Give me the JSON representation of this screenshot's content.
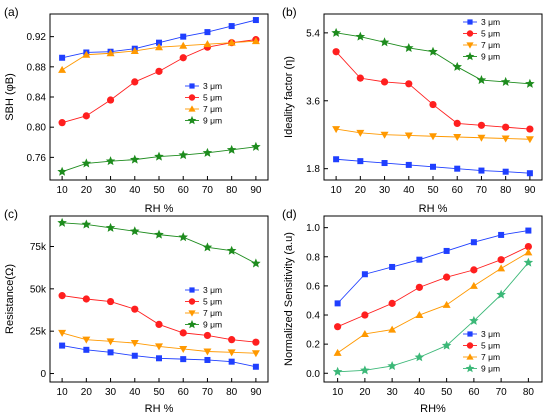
{
  "colors": {
    "blue": "#1f3fff",
    "red": "#ff1f1f",
    "orange": "#ff9900",
    "green": "#1e8c1e",
    "teal": "#3cb878"
  },
  "chart_data": [
    {
      "panel_label": "(a)",
      "type": "line",
      "xlabel": "RH %",
      "ylabel": "SBH (φB)",
      "x": [
        10,
        20,
        30,
        40,
        50,
        60,
        70,
        80,
        90
      ],
      "xlim": [
        5,
        95
      ],
      "ylim": [
        0.73,
        0.95
      ],
      "xticks": [
        10,
        20,
        30,
        40,
        50,
        60,
        70,
        80,
        90
      ],
      "yticks": [
        0.76,
        0.8,
        0.84,
        0.88,
        0.92
      ],
      "ytick_labels": [
        "0.76",
        "0.80",
        "0.84",
        "0.88",
        "0.92"
      ],
      "legend_position": "center-right",
      "series": [
        {
          "name": "3 μm",
          "marker": "square",
          "color": "#1f3fff",
          "values": [
            0.892,
            0.899,
            0.9,
            0.904,
            0.912,
            0.92,
            0.926,
            0.934,
            0.942
          ]
        },
        {
          "name": "5 μm",
          "marker": "circle",
          "color": "#ff1f1f",
          "values": [
            0.806,
            0.815,
            0.836,
            0.86,
            0.874,
            0.892,
            0.906,
            0.912,
            0.916
          ]
        },
        {
          "name": "7 μm",
          "marker": "triangle-up",
          "color": "#ff9900",
          "values": [
            0.876,
            0.896,
            0.898,
            0.901,
            0.906,
            0.908,
            0.91,
            0.912,
            0.914
          ]
        },
        {
          "name": "9 μm",
          "marker": "star",
          "color": "#1e8c1e",
          "values": [
            0.741,
            0.752,
            0.755,
            0.757,
            0.761,
            0.763,
            0.766,
            0.77,
            0.774
          ]
        }
      ]
    },
    {
      "panel_label": "(b)",
      "type": "line",
      "xlabel": "RH %",
      "ylabel": "Ideality factor (η)",
      "x": [
        10,
        20,
        30,
        40,
        50,
        60,
        70,
        80,
        90
      ],
      "xlim": [
        5,
        95
      ],
      "ylim": [
        1.5,
        5.9
      ],
      "xticks": [
        10,
        20,
        30,
        40,
        50,
        60,
        70,
        80,
        90
      ],
      "yticks": [
        1.8,
        3.6,
        5.4
      ],
      "ytick_labels": [
        "1.8",
        "3.6",
        "5.4"
      ],
      "legend_position": "top-right",
      "series": [
        {
          "name": "3 μm",
          "marker": "square",
          "color": "#1f3fff",
          "values": [
            2.05,
            2.0,
            1.95,
            1.9,
            1.85,
            1.8,
            1.75,
            1.72,
            1.68
          ]
        },
        {
          "name": "5 μm",
          "marker": "circle",
          "color": "#ff1f1f",
          "values": [
            4.9,
            4.2,
            4.1,
            4.05,
            3.5,
            3.0,
            2.95,
            2.9,
            2.85
          ]
        },
        {
          "name": "7 μm",
          "marker": "triangle-down",
          "color": "#ff9900",
          "values": [
            2.85,
            2.75,
            2.7,
            2.68,
            2.66,
            2.64,
            2.62,
            2.6,
            2.58
          ]
        },
        {
          "name": "9 μm",
          "marker": "star",
          "color": "#1e8c1e",
          "values": [
            5.4,
            5.3,
            5.15,
            5.0,
            4.9,
            4.5,
            4.15,
            4.1,
            4.05
          ]
        }
      ]
    },
    {
      "panel_label": "(c)",
      "type": "line",
      "xlabel": "RH %",
      "ylabel": "Resistance(Ω)",
      "x": [
        10,
        20,
        30,
        40,
        50,
        60,
        70,
        80,
        90
      ],
      "xlim": [
        5,
        95
      ],
      "ylim": [
        -5000,
        93000
      ],
      "xticks": [
        10,
        20,
        30,
        40,
        50,
        60,
        70,
        80,
        90
      ],
      "yticks": [
        0,
        25000,
        50000,
        75000
      ],
      "ytick_labels": [
        "0",
        "25k",
        "50k",
        "75k"
      ],
      "legend_position": "center-right",
      "series": [
        {
          "name": "3 μm",
          "marker": "square",
          "color": "#1f3fff",
          "values": [
            16500,
            14000,
            12500,
            10500,
            9000,
            8500,
            8000,
            7000,
            4000
          ]
        },
        {
          "name": "5 μm",
          "marker": "circle",
          "color": "#ff1f1f",
          "values": [
            46000,
            44000,
            42500,
            38000,
            29000,
            24000,
            22500,
            20000,
            18500
          ]
        },
        {
          "name": "7 μm",
          "marker": "triangle-down",
          "color": "#ff9900",
          "values": [
            24000,
            20000,
            19000,
            18000,
            16000,
            14500,
            13000,
            12500,
            12000
          ]
        },
        {
          "name": "9 μm",
          "marker": "star",
          "color": "#1e8c1e",
          "values": [
            89000,
            88000,
            86000,
            84000,
            82000,
            80500,
            74500,
            72500,
            65000
          ]
        }
      ]
    },
    {
      "panel_label": "(d)",
      "type": "line",
      "xlabel": "RH%",
      "ylabel": "Normalized Sensitivity (a.u)",
      "x": [
        10,
        20,
        30,
        40,
        50,
        60,
        70,
        80
      ],
      "xlim": [
        5,
        85
      ],
      "ylim": [
        -0.06,
        1.08
      ],
      "xticks": [
        10,
        20,
        30,
        40,
        50,
        60,
        70,
        80
      ],
      "yticks": [
        0.0,
        0.2,
        0.4,
        0.6,
        0.8,
        1.0
      ],
      "ytick_labels": [
        "0.0",
        "0.2",
        "0.4",
        "0.6",
        "0.8",
        "1.0"
      ],
      "legend_position": "bottom-right",
      "series": [
        {
          "name": "3 μm",
          "marker": "square",
          "color": "#1f3fff",
          "values": [
            0.48,
            0.68,
            0.73,
            0.78,
            0.84,
            0.9,
            0.95,
            0.98
          ]
        },
        {
          "name": "5 μm",
          "marker": "circle",
          "color": "#ff1f1f",
          "values": [
            0.32,
            0.4,
            0.48,
            0.59,
            0.66,
            0.71,
            0.78,
            0.87
          ]
        },
        {
          "name": "7 μm",
          "marker": "triangle-up",
          "color": "#ff9900",
          "values": [
            0.14,
            0.27,
            0.3,
            0.4,
            0.47,
            0.6,
            0.72,
            0.83
          ]
        },
        {
          "name": "9 μm",
          "marker": "star",
          "color": "#3cb878",
          "values": [
            0.01,
            0.02,
            0.05,
            0.11,
            0.19,
            0.36,
            0.54,
            0.76
          ]
        }
      ]
    }
  ]
}
